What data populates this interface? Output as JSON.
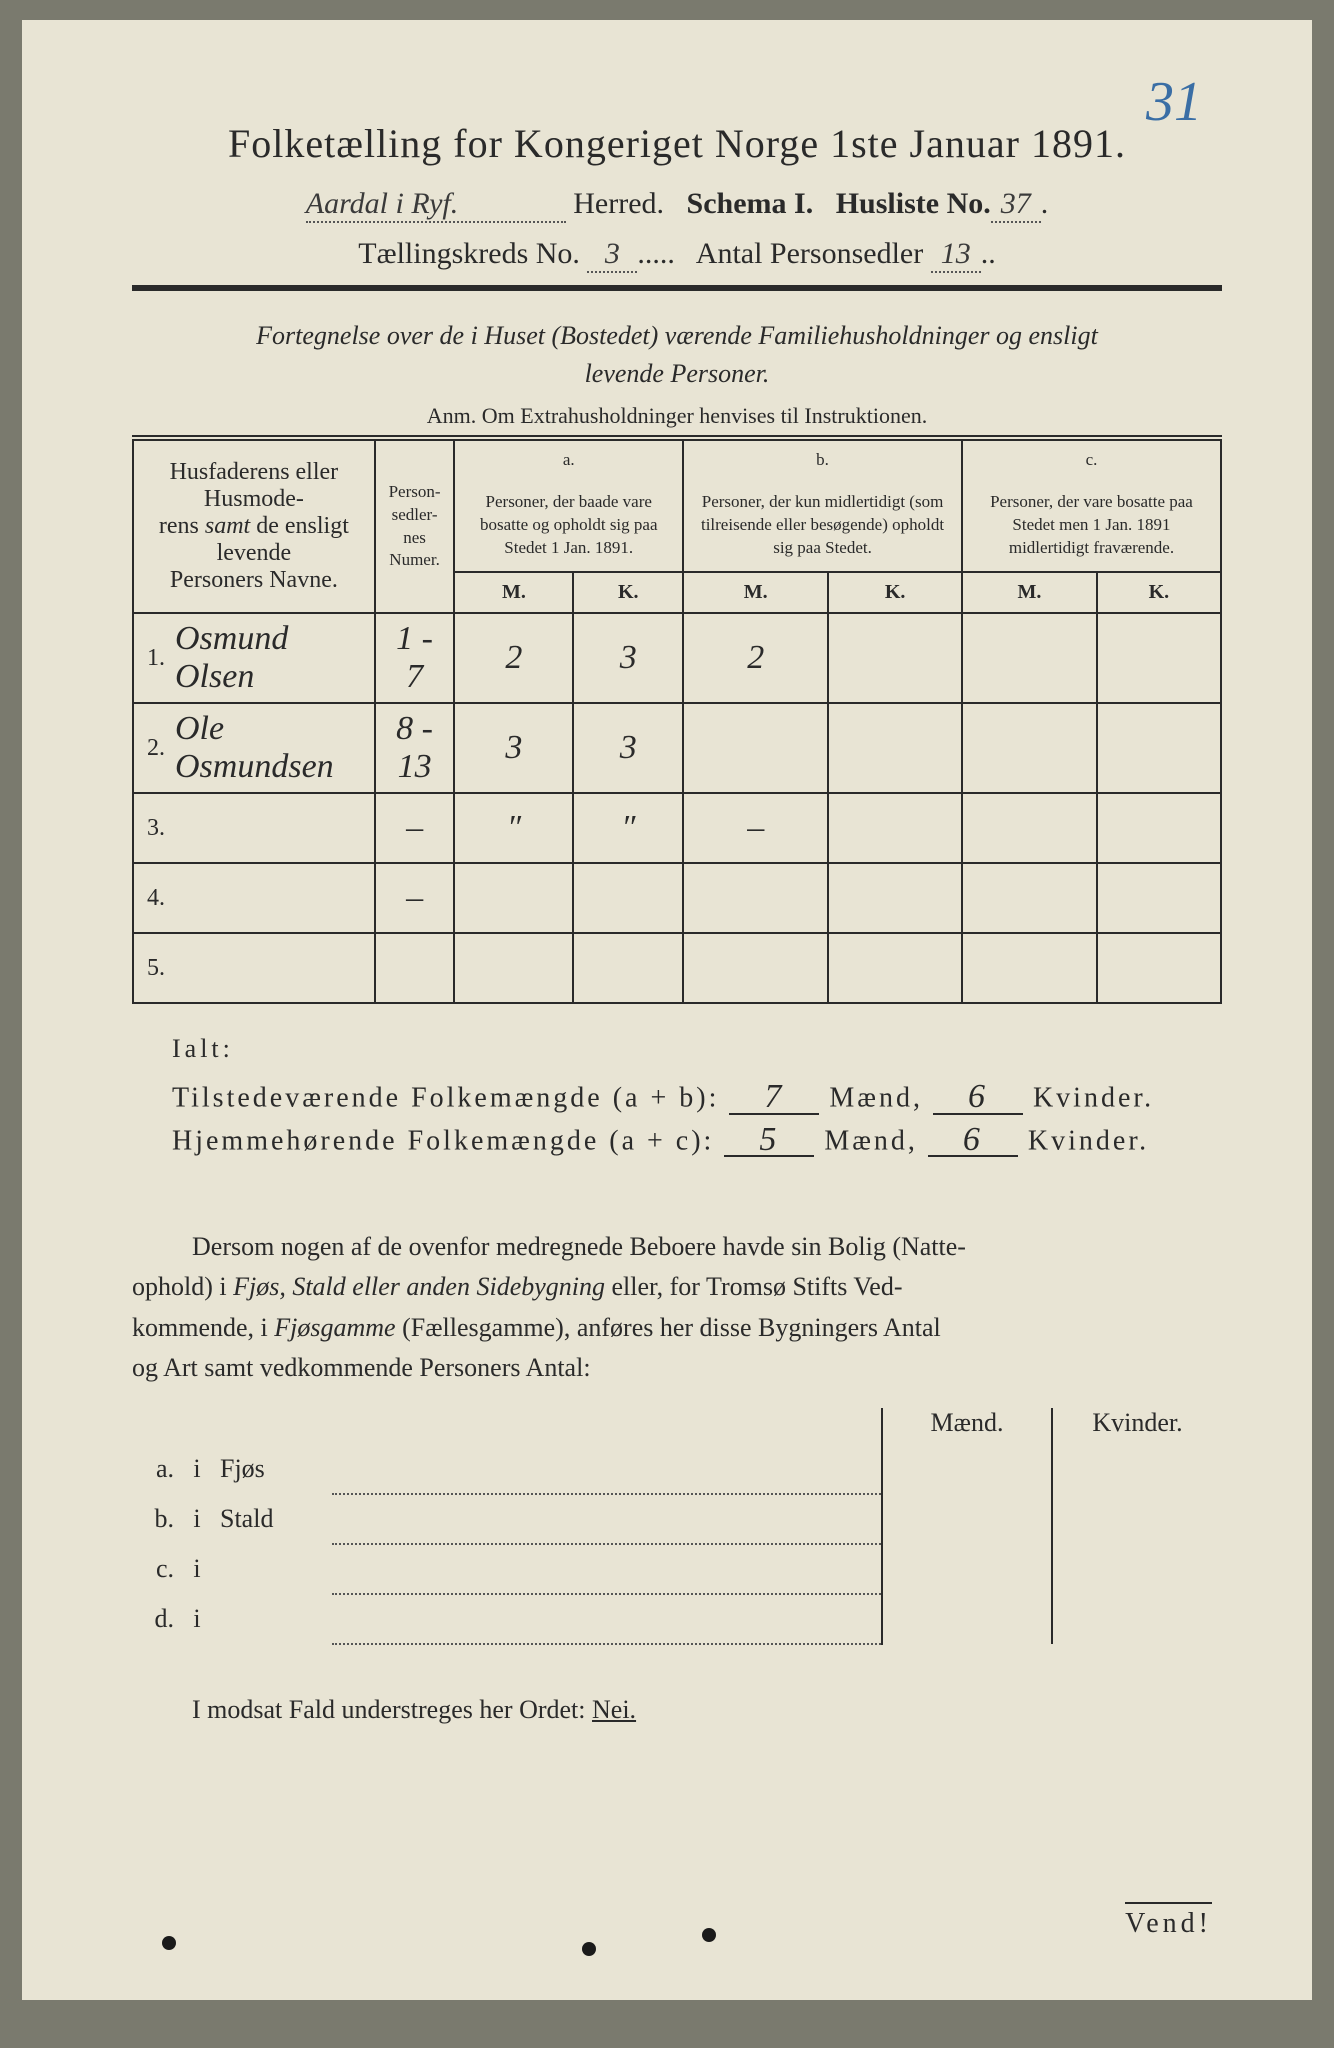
{
  "pageNumber": "31",
  "title": "Folketælling for Kongeriget Norge 1ste Januar 1891.",
  "line2": {
    "herredHW": "Aardal i Ryf.",
    "herred": "Herred.",
    "schema": "Schema I.",
    "huslisteLabel": "Husliste No.",
    "huslisteHW": "37"
  },
  "line3": {
    "tkLabel": "Tællingskreds No.",
    "tkHW": "3",
    "apLabel": "Antal Personsedler",
    "apHW": "13"
  },
  "subtitle1": "Fortegnelse over de i Huset (Bostedet) værende Familiehusholdninger og ensligt",
  "subtitle2": "levende Personer.",
  "anm": "Anm.  Om Extrahusholdninger henvises til Instruktionen.",
  "headers": {
    "names": "Husfaderens eller Husmoderens samt de ensligt levende Personers Navne.",
    "numer": "Person-\nsedler-\nnes\nNumer.",
    "aTop": "a.",
    "a": "Personer, der baade vare bosatte og opholdt sig paa Stedet 1 Jan. 1891.",
    "bTop": "b.",
    "b": "Personer, der kun midlertidigt (som tilreisende eller besøgende) opholdt sig paa Stedet.",
    "cTop": "c.",
    "c": "Personer, der vare bosatte paa Stedet men 1 Jan. 1891 midlertidigt fraværende.",
    "m": "M.",
    "k": "K."
  },
  "rows": [
    {
      "n": "1.",
      "name": "Osmund Olsen",
      "numer": "1 - 7",
      "aM": "2",
      "aK": "3",
      "bM": "2",
      "bK": "",
      "cM": "",
      "cK": ""
    },
    {
      "n": "2.",
      "name": "Ole Osmundsen",
      "numer": "8 - 13",
      "aM": "3",
      "aK": "3",
      "bM": "",
      "bK": "",
      "cM": "",
      "cK": ""
    },
    {
      "n": "3.",
      "name": "",
      "numer": "–",
      "aM": "″",
      "aK": "″",
      "bM": "–",
      "bK": "",
      "cM": "",
      "cK": ""
    },
    {
      "n": "4.",
      "name": "",
      "numer": "–",
      "aM": "",
      "aK": "",
      "bM": "",
      "bK": "",
      "cM": "",
      "cK": ""
    },
    {
      "n": "5.",
      "name": "",
      "numer": "",
      "aM": "",
      "aK": "",
      "bM": "",
      "bK": "",
      "cM": "",
      "cK": ""
    }
  ],
  "ialt": "Ialt:",
  "totals": {
    "t1Label": "Tilstedeværende Folkemængde (a + b):",
    "t1M": "7",
    "maend": "Mænd,",
    "t1K": "6",
    "kvinder": "Kvinder.",
    "t2Label": "Hjemmehørende Folkemængde (a + c):",
    "t2M": "5",
    "t2K": "6"
  },
  "para": "Dersom nogen af de ovenfor medregnede Beboere havde sin Bolig (Natteophold) i Fjøs, Stald eller anden Sidebygning eller, for Tromsø Stifts Vedkommende, i Fjøsgamme (Fællesgamme), anføres her disse Bygningers Antal og Art samt vedkommende Personers Antal:",
  "smallTable": {
    "colMaend": "Mænd.",
    "colKvinder": "Kvinder.",
    "rows": [
      {
        "lab": "a.",
        "ii": "i",
        "kind": "Fjøs"
      },
      {
        "lab": "b.",
        "ii": "i",
        "kind": "Stald"
      },
      {
        "lab": "c.",
        "ii": "i",
        "kind": ""
      },
      {
        "lab": "d.",
        "ii": "i",
        "kind": ""
      }
    ]
  },
  "neiLine": "I modsat Fald understreges her Ordet:",
  "nei": "Nei.",
  "vend": "Vend!",
  "colors": {
    "paper": "#e8e4d4",
    "ink": "#2a2a2a",
    "pencilBlue": "#3a6ea5",
    "background": "#7a7a6e"
  },
  "layout": {
    "pageWidth": 1334,
    "pageHeight": 2048
  }
}
